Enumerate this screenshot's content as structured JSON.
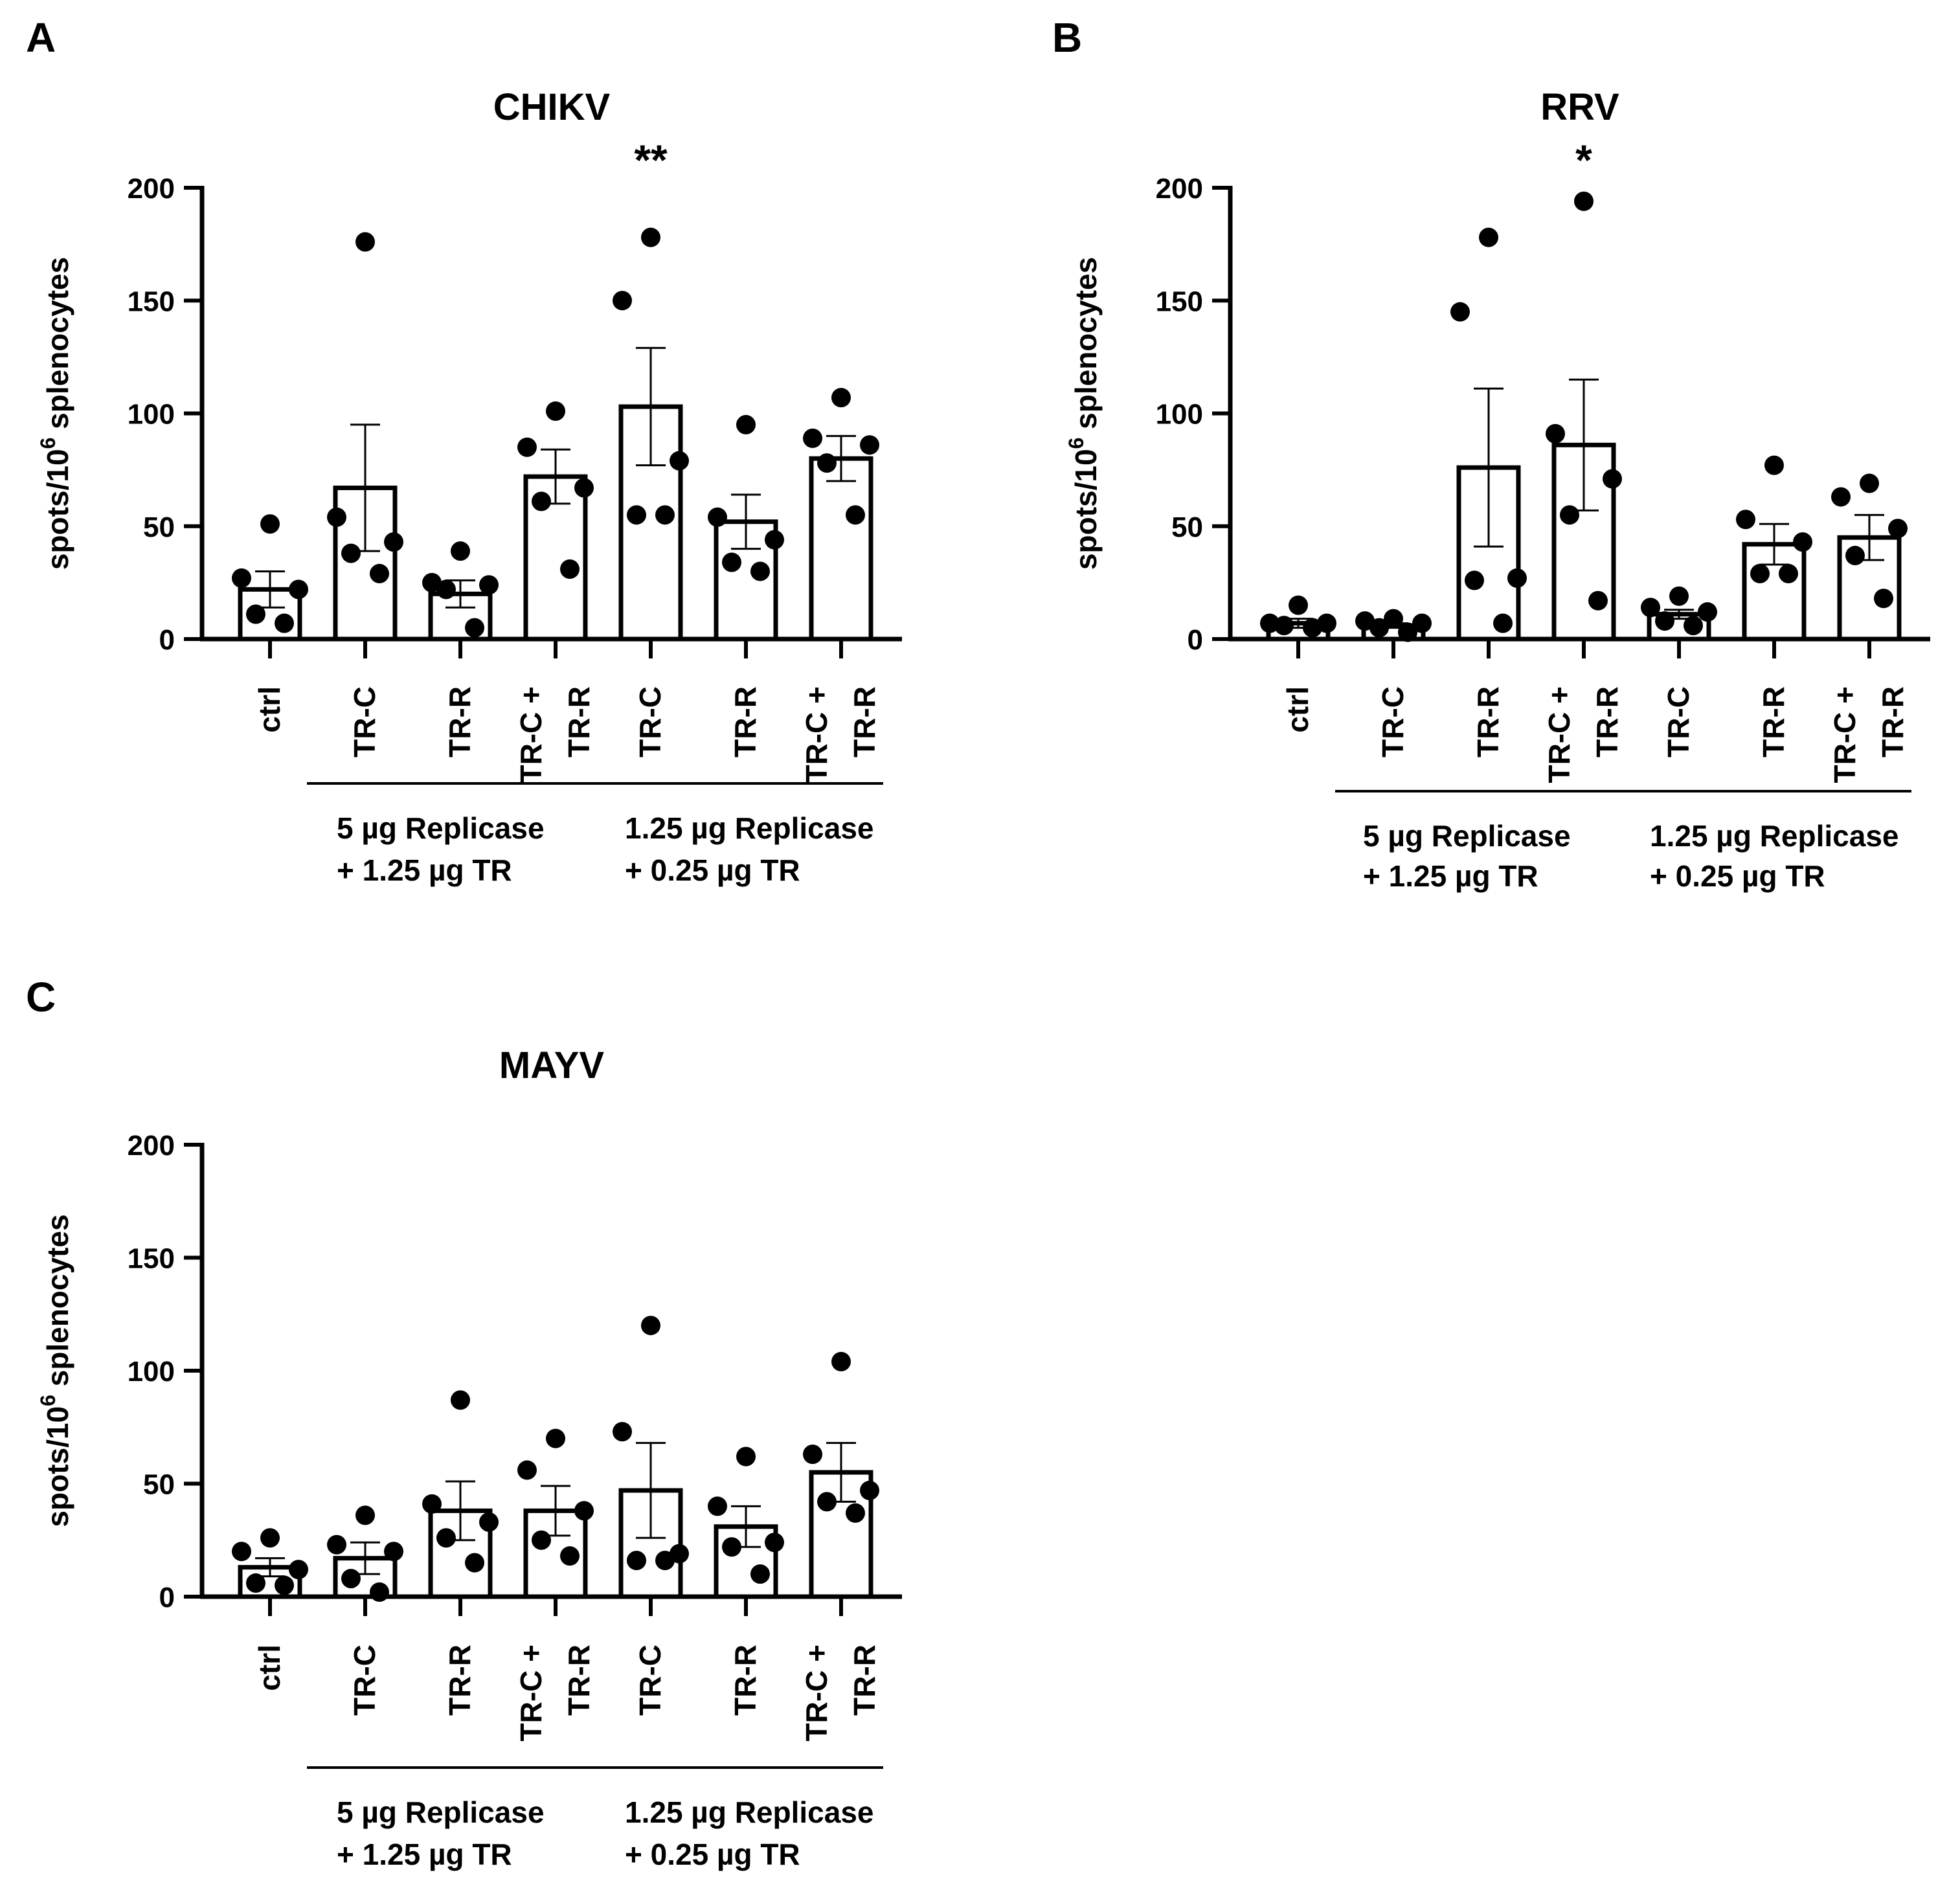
{
  "figure": {
    "ylabel_prefix": "spots/10",
    "ylabel_sup": "6",
    "ylabel_suffix": " splenocytes",
    "group_labels": [
      {
        "line1": "5 µg Replicase",
        "line2": "+ 1.25 µg TR"
      },
      {
        "line1": "1.25 µg Replicase",
        "line2": "+ 0.25 µg TR"
      }
    ]
  },
  "chart_data": [
    {
      "panel": "A",
      "type": "bar",
      "title": "CHIKV",
      "ylim": [
        0,
        200
      ],
      "yticks": [
        0,
        50,
        100,
        150,
        200
      ],
      "categories": [
        {
          "lines": [
            "ctrl"
          ]
        },
        {
          "lines": [
            "TR-C"
          ]
        },
        {
          "lines": [
            "TR-R"
          ]
        },
        {
          "lines": [
            "TR-C +",
            "TR-R"
          ]
        },
        {
          "lines": [
            "TR-C"
          ]
        },
        {
          "lines": [
            "TR-R"
          ]
        },
        {
          "lines": [
            "TR-C +",
            "TR-R"
          ]
        }
      ],
      "values": [
        22,
        67,
        20,
        72,
        103,
        52,
        80
      ],
      "sem": [
        8,
        28,
        6,
        12,
        26,
        12,
        10
      ],
      "points": [
        [
          51,
          27,
          22,
          11,
          7
        ],
        [
          176,
          54,
          43,
          38,
          29
        ],
        [
          39,
          25,
          24,
          22,
          5
        ],
        [
          101,
          85,
          67,
          61,
          31
        ],
        [
          178,
          150,
          79,
          55,
          55
        ],
        [
          95,
          54,
          44,
          34,
          30
        ],
        [
          107,
          89,
          86,
          78,
          55
        ]
      ],
      "significance": [
        "",
        "",
        "",
        "",
        "**",
        "",
        ""
      ]
    },
    {
      "panel": "B",
      "type": "bar",
      "title": "RRV",
      "ylim": [
        0,
        200
      ],
      "yticks": [
        0,
        50,
        100,
        150,
        200
      ],
      "categories": [
        {
          "lines": [
            "ctrl"
          ]
        },
        {
          "lines": [
            "TR-C"
          ]
        },
        {
          "lines": [
            "TR-R"
          ]
        },
        {
          "lines": [
            "TR-C +",
            "TR-R"
          ]
        },
        {
          "lines": [
            "TR-C"
          ]
        },
        {
          "lines": [
            "TR-R"
          ]
        },
        {
          "lines": [
            "TR-C +",
            "TR-R"
          ]
        }
      ],
      "values": [
        7,
        6,
        76,
        86,
        11,
        42,
        45
      ],
      "sem": [
        2,
        1,
        35,
        29,
        2,
        9,
        10
      ],
      "points": [
        [
          15,
          7,
          7,
          6,
          5
        ],
        [
          9,
          8,
          7,
          5,
          3
        ],
        [
          178,
          145,
          27,
          26,
          7
        ],
        [
          194,
          91,
          71,
          55,
          17
        ],
        [
          19,
          14,
          12,
          8,
          6
        ],
        [
          77,
          53,
          43,
          29,
          29
        ],
        [
          69,
          63,
          49,
          37,
          18
        ]
      ],
      "significance": [
        "",
        "",
        "",
        "*",
        "",
        "",
        ""
      ]
    },
    {
      "panel": "C",
      "type": "bar",
      "title": "MAYV",
      "ylim": [
        0,
        200
      ],
      "yticks": [
        0,
        50,
        100,
        150,
        200
      ],
      "categories": [
        {
          "lines": [
            "ctrl"
          ]
        },
        {
          "lines": [
            "TR-C"
          ]
        },
        {
          "lines": [
            "TR-R"
          ]
        },
        {
          "lines": [
            "TR-C +",
            "TR-R"
          ]
        },
        {
          "lines": [
            "TR-C"
          ]
        },
        {
          "lines": [
            "TR-R"
          ]
        },
        {
          "lines": [
            "TR-C +",
            "TR-R"
          ]
        }
      ],
      "values": [
        13,
        17,
        38,
        38,
        47,
        31,
        55
      ],
      "sem": [
        4,
        7,
        13,
        11,
        21,
        9,
        13
      ],
      "points": [
        [
          26,
          20,
          12,
          6,
          5
        ],
        [
          36,
          23,
          20,
          8,
          2
        ],
        [
          87,
          41,
          33,
          26,
          15
        ],
        [
          70,
          56,
          38,
          25,
          18
        ],
        [
          120,
          73,
          19,
          16,
          16
        ],
        [
          62,
          40,
          24,
          22,
          10
        ],
        [
          104,
          63,
          47,
          42,
          37
        ]
      ],
      "significance": [
        "",
        "",
        "",
        "",
        "",
        "",
        ""
      ]
    }
  ]
}
